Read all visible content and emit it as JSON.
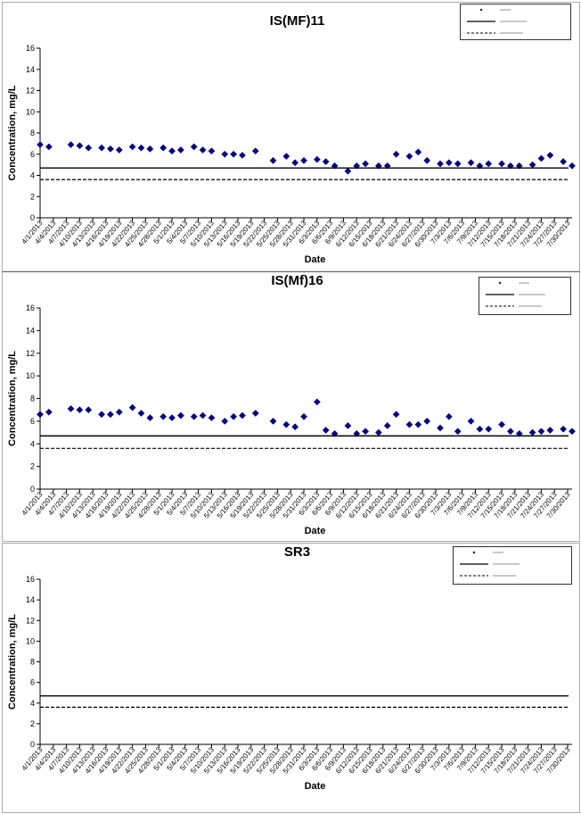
{
  "chart_data": [
    {
      "type": "scatter",
      "title": "IS(MF)11",
      "xlabel": "Date",
      "ylabel": "Concentration, mg/L",
      "ylim": [
        0,
        16
      ],
      "yticks": [
        0,
        2,
        4,
        6,
        8,
        10,
        12,
        14,
        16
      ],
      "x_categories": [
        "4/1/2013",
        "4/4/2013",
        "4/7/2013",
        "4/10/2013",
        "4/13/2013",
        "4/16/2013",
        "4/19/2013",
        "4/22/2013",
        "4/25/2013",
        "4/28/2013",
        "5/1/2013",
        "5/4/2013",
        "5/7/2013",
        "5/10/2013",
        "5/13/2013",
        "5/16/2013",
        "5/19/2013",
        "5/22/2013",
        "5/25/2013",
        "5/28/2013",
        "5/31/2013",
        "6/3/2013",
        "6/6/2013",
        "6/9/2013",
        "6/12/2013",
        "6/15/2013",
        "6/18/2013",
        "6/21/2013",
        "6/24/2013",
        "6/27/2013",
        "6/30/2013",
        "7/3/2013",
        "7/6/2013",
        "7/9/2013",
        "7/12/2013",
        "7/15/2013",
        "7/18/2013",
        "7/21/2013",
        "7/24/2013",
        "7/27/2013",
        "7/30/2013"
      ],
      "x_range": [
        "4/1/2013",
        "7/31/2013"
      ],
      "legend": "top-right",
      "grid": false,
      "series": [
        {
          "kind": "points",
          "color": "#00007f",
          "marker": "diamond",
          "points": [
            [
              "4/1/2013",
              6.9
            ],
            [
              "4/3/2013",
              6.7
            ],
            [
              "4/8/2013",
              6.9
            ],
            [
              "4/10/2013",
              6.8
            ],
            [
              "4/12/2013",
              6.6
            ],
            [
              "4/15/2013",
              6.6
            ],
            [
              "4/17/2013",
              6.5
            ],
            [
              "4/19/2013",
              6.4
            ],
            [
              "4/22/2013",
              6.7
            ],
            [
              "4/24/2013",
              6.6
            ],
            [
              "4/26/2013",
              6.5
            ],
            [
              "4/29/2013",
              6.6
            ],
            [
              "5/1/2013",
              6.3
            ],
            [
              "5/3/2013",
              6.4
            ],
            [
              "5/6/2013",
              6.7
            ],
            [
              "5/8/2013",
              6.4
            ],
            [
              "5/10/2013",
              6.3
            ],
            [
              "5/13/2013",
              6.0
            ],
            [
              "5/15/2013",
              6.0
            ],
            [
              "5/17/2013",
              5.9
            ],
            [
              "5/20/2013",
              6.3
            ],
            [
              "5/24/2013",
              5.4
            ],
            [
              "5/27/2013",
              5.8
            ],
            [
              "5/29/2013",
              5.2
            ],
            [
              "5/31/2013",
              5.4
            ],
            [
              "6/3/2013",
              5.5
            ],
            [
              "6/5/2013",
              5.3
            ],
            [
              "6/7/2013",
              4.9
            ],
            [
              "6/10/2013",
              4.4
            ],
            [
              "6/12/2013",
              4.9
            ],
            [
              "6/14/2013",
              5.1
            ],
            [
              "6/17/2013",
              4.9
            ],
            [
              "6/19/2013",
              4.9
            ],
            [
              "6/21/2013",
              6.0
            ],
            [
              "6/24/2013",
              5.8
            ],
            [
              "6/26/2013",
              6.2
            ],
            [
              "6/28/2013",
              5.4
            ],
            [
              "7/1/2013",
              5.1
            ],
            [
              "7/3/2013",
              5.2
            ],
            [
              "7/5/2013",
              5.1
            ],
            [
              "7/8/2013",
              5.2
            ],
            [
              "7/10/2013",
              4.9
            ],
            [
              "7/12/2013",
              5.1
            ],
            [
              "7/15/2013",
              5.1
            ],
            [
              "7/17/2013",
              4.9
            ],
            [
              "7/19/2013",
              4.9
            ],
            [
              "7/22/2013",
              5.0
            ],
            [
              "7/24/2013",
              5.6
            ],
            [
              "7/26/2013",
              5.9
            ],
            [
              "7/29/2013",
              5.3
            ],
            [
              "7/31/2013",
              4.9
            ]
          ]
        },
        {
          "kind": "hline",
          "style": "solid",
          "value": 4.7
        },
        {
          "kind": "hline",
          "style": "dashed",
          "value": 3.6
        }
      ]
    },
    {
      "type": "scatter",
      "title": "IS(Mf)16",
      "xlabel": "Date",
      "ylabel": "Concentration, mg/L",
      "ylim": [
        0,
        16
      ],
      "yticks": [
        0,
        2,
        4,
        6,
        8,
        10,
        12,
        14,
        16
      ],
      "x_categories": [
        "4/1/2013",
        "4/4/2013",
        "4/7/2013",
        "4/10/2013",
        "4/13/2013",
        "4/16/2013",
        "4/19/2013",
        "4/22/2013",
        "4/25/2013",
        "4/28/2013",
        "5/1/2013",
        "5/4/2013",
        "5/7/2013",
        "5/10/2013",
        "5/13/2013",
        "5/16/2013",
        "5/19/2013",
        "5/22/2013",
        "5/25/2013",
        "5/28/2013",
        "5/31/2013",
        "6/3/2013",
        "6/6/2013",
        "6/9/2013",
        "6/12/2013",
        "6/15/2013",
        "6/18/2013",
        "6/21/2013",
        "6/24/2013",
        "6/27/2013",
        "6/30/2013",
        "7/3/2013",
        "7/6/2013",
        "7/9/2013",
        "7/12/2013",
        "7/15/2013",
        "7/18/2013",
        "7/21/2013",
        "7/24/2013",
        "7/27/2013",
        "7/30/2013"
      ],
      "x_range": [
        "4/1/2013",
        "7/31/2013"
      ],
      "legend": "top-right",
      "grid": false,
      "series": [
        {
          "kind": "points",
          "color": "#00007f",
          "marker": "diamond",
          "points": [
            [
              "4/1/2013",
              6.6
            ],
            [
              "4/3/2013",
              6.8
            ],
            [
              "4/8/2013",
              7.1
            ],
            [
              "4/10/2013",
              7.0
            ],
            [
              "4/12/2013",
              7.0
            ],
            [
              "4/15/2013",
              6.6
            ],
            [
              "4/17/2013",
              6.6
            ],
            [
              "4/19/2013",
              6.8
            ],
            [
              "4/22/2013",
              7.2
            ],
            [
              "4/24/2013",
              6.7
            ],
            [
              "4/26/2013",
              6.3
            ],
            [
              "4/29/2013",
              6.4
            ],
            [
              "5/1/2013",
              6.3
            ],
            [
              "5/3/2013",
              6.5
            ],
            [
              "5/6/2013",
              6.4
            ],
            [
              "5/8/2013",
              6.5
            ],
            [
              "5/10/2013",
              6.3
            ],
            [
              "5/13/2013",
              6.0
            ],
            [
              "5/15/2013",
              6.4
            ],
            [
              "5/17/2013",
              6.5
            ],
            [
              "5/20/2013",
              6.7
            ],
            [
              "5/24/2013",
              6.0
            ],
            [
              "5/27/2013",
              5.7
            ],
            [
              "5/29/2013",
              5.5
            ],
            [
              "5/31/2013",
              6.4
            ],
            [
              "6/3/2013",
              7.7
            ],
            [
              "6/5/2013",
              5.2
            ],
            [
              "6/7/2013",
              4.9
            ],
            [
              "6/10/2013",
              5.6
            ],
            [
              "6/12/2013",
              4.9
            ],
            [
              "6/14/2013",
              5.1
            ],
            [
              "6/17/2013",
              5.0
            ],
            [
              "6/19/2013",
              5.6
            ],
            [
              "6/21/2013",
              6.6
            ],
            [
              "6/24/2013",
              5.7
            ],
            [
              "6/26/2013",
              5.7
            ],
            [
              "6/28/2013",
              6.0
            ],
            [
              "7/1/2013",
              5.4
            ],
            [
              "7/3/2013",
              6.4
            ],
            [
              "7/5/2013",
              5.1
            ],
            [
              "7/8/2013",
              6.0
            ],
            [
              "7/10/2013",
              5.3
            ],
            [
              "7/12/2013",
              5.3
            ],
            [
              "7/15/2013",
              5.7
            ],
            [
              "7/17/2013",
              5.1
            ],
            [
              "7/19/2013",
              4.9
            ],
            [
              "7/22/2013",
              5.0
            ],
            [
              "7/24/2013",
              5.1
            ],
            [
              "7/26/2013",
              5.2
            ],
            [
              "7/29/2013",
              5.3
            ],
            [
              "7/31/2013",
              5.1
            ]
          ]
        },
        {
          "kind": "hline",
          "style": "solid",
          "value": 4.7
        },
        {
          "kind": "hline",
          "style": "dashed",
          "value": 3.6
        }
      ]
    },
    {
      "type": "scatter",
      "title": "SR3",
      "xlabel": "Date",
      "ylabel": "Concentration, mg/L",
      "ylim": [
        0,
        16
      ],
      "yticks": [
        0,
        2,
        4,
        6,
        8,
        10,
        12,
        14,
        16
      ],
      "x_categories": [
        "4/1/2013",
        "4/4/2013",
        "4/7/2013",
        "4/10/2013",
        "4/13/2013",
        "4/16/2013",
        "4/19/2013",
        "4/22/2013",
        "4/25/2013",
        "4/28/2013",
        "5/1/2013",
        "5/4/2013",
        "5/7/2013",
        "5/10/2013",
        "5/13/2013",
        "5/16/2013",
        "5/19/2013",
        "5/22/2013",
        "5/25/2013",
        "5/28/2013",
        "5/31/2013",
        "6/3/2013",
        "6/6/2013",
        "6/9/2013",
        "6/12/2013",
        "6/15/2013",
        "6/18/2013",
        "6/21/2013",
        "6/24/2013",
        "6/27/2013",
        "6/30/2013",
        "7/3/2013",
        "7/6/2013",
        "7/9/2013",
        "7/12/2013",
        "7/15/2013",
        "7/18/2013",
        "7/21/2013",
        "7/24/2013",
        "7/27/2013",
        "7/30/2013"
      ],
      "x_range": [
        "4/1/2013",
        "7/31/2013"
      ],
      "legend": "top-right",
      "grid": false,
      "series": [
        {
          "kind": "points",
          "color": "#00007f",
          "marker": "diamond",
          "points": []
        },
        {
          "kind": "hline",
          "style": "solid",
          "value": 4.7
        },
        {
          "kind": "hline",
          "style": "dashed",
          "value": 3.6
        }
      ]
    }
  ]
}
